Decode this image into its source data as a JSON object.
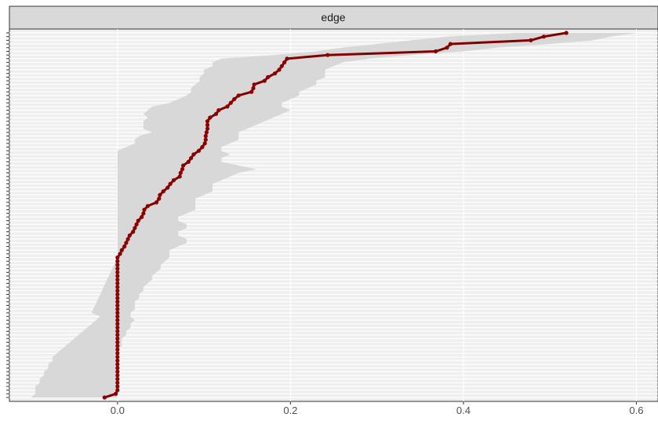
{
  "chart_data": {
    "type": "line",
    "facet_label": "edge",
    "xlim": [
      -0.125,
      0.625
    ],
    "x_ticks": [
      0.0,
      0.2,
      0.4,
      0.6
    ],
    "x_tick_labels": [
      "0.0",
      "0.2",
      "0.4",
      "0.6"
    ],
    "y_count": 100,
    "grid": true,
    "colors": {
      "line": "#800000",
      "point": "#8b0000",
      "ribbon": "#d6d6d6",
      "panel": "#efefef",
      "strip": "#d9d9d9",
      "grid": "#ffffff"
    },
    "series": [
      {
        "values": [
          0.519,
          0.493,
          0.478,
          0.385,
          0.381,
          0.368,
          0.243,
          0.196,
          0.193,
          0.19,
          0.187,
          0.182,
          0.174,
          0.17,
          0.158,
          0.157,
          0.155,
          0.14,
          0.135,
          0.131,
          0.127,
          0.117,
          0.114,
          0.107,
          0.104,
          0.104,
          0.104,
          0.103,
          0.102,
          0.102,
          0.101,
          0.098,
          0.094,
          0.088,
          0.085,
          0.082,
          0.076,
          0.075,
          0.073,
          0.072,
          0.065,
          0.061,
          0.058,
          0.053,
          0.049,
          0.048,
          0.045,
          0.035,
          0.031,
          0.03,
          0.028,
          0.024,
          0.022,
          0.02,
          0.018,
          0.014,
          0.012,
          0.01,
          0.008,
          0.005,
          0.003,
          0.0,
          0.0,
          0.0,
          0.0,
          0.0,
          0.0,
          0.0,
          0.0,
          0.0,
          0.0,
          0.0,
          0.0,
          0.0,
          0.0,
          0.0,
          0.0,
          0.0,
          0.0,
          0.0,
          0.0,
          0.0,
          0.0,
          0.0,
          0.0,
          0.0,
          0.0,
          0.0,
          0.0,
          0.0,
          0.0,
          0.0,
          0.0,
          0.0,
          0.0,
          0.0,
          0.0,
          0.0,
          -0.002,
          -0.015
        ],
        "lower": [
          0.46,
          0.38,
          0.34,
          0.3,
          0.26,
          0.23,
          0.18,
          0.12,
          0.11,
          0.11,
          0.1,
          0.1,
          0.095,
          0.095,
          0.09,
          0.085,
          0.085,
          0.08,
          0.07,
          0.06,
          0.04,
          0.035,
          0.03,
          0.035,
          0.03,
          0.03,
          0.03,
          0.04,
          0.025,
          0.02,
          0.02,
          0.01,
          0.0,
          0.0,
          0.0,
          0.0,
          0.0,
          0.0,
          0.0,
          0.0,
          0.0,
          0.0,
          0.0,
          0.0,
          0.0,
          0.0,
          0.0,
          0.0,
          0.0,
          0.0,
          0.0,
          0.0,
          0.0,
          0.0,
          0.0,
          0.0,
          0.0,
          0.0,
          0.0,
          0.0,
          0.0,
          0.0,
          -0.002,
          -0.004,
          -0.006,
          -0.008,
          -0.01,
          -0.012,
          -0.014,
          -0.016,
          -0.018,
          -0.02,
          -0.022,
          -0.024,
          -0.026,
          -0.028,
          -0.03,
          -0.02,
          -0.025,
          -0.03,
          -0.035,
          -0.04,
          -0.045,
          -0.05,
          -0.055,
          -0.06,
          -0.065,
          -0.07,
          -0.075,
          -0.075,
          -0.08,
          -0.08,
          -0.085,
          -0.085,
          -0.09,
          -0.09,
          -0.095,
          -0.095,
          -0.095,
          -0.1
        ],
        "upper": [
          0.6,
          0.57,
          0.55,
          0.5,
          0.44,
          0.4,
          0.34,
          0.29,
          0.26,
          0.25,
          0.24,
          0.24,
          0.24,
          0.23,
          0.23,
          0.22,
          0.21,
          0.21,
          0.2,
          0.19,
          0.19,
          0.2,
          0.19,
          0.18,
          0.17,
          0.16,
          0.15,
          0.14,
          0.14,
          0.14,
          0.13,
          0.12,
          0.12,
          0.13,
          0.12,
          0.12,
          0.14,
          0.16,
          0.14,
          0.13,
          0.12,
          0.11,
          0.11,
          0.11,
          0.1,
          0.09,
          0.09,
          0.09,
          0.09,
          0.08,
          0.07,
          0.07,
          0.08,
          0.08,
          0.07,
          0.07,
          0.08,
          0.08,
          0.07,
          0.06,
          0.06,
          0.06,
          0.055,
          0.05,
          0.05,
          0.045,
          0.04,
          0.04,
          0.035,
          0.03,
          0.03,
          0.025,
          0.025,
          0.02,
          0.02,
          0.02,
          0.015,
          0.015,
          0.02,
          0.015,
          0.015,
          0.01,
          0.01,
          0.005,
          0.005,
          0.005,
          0.0,
          0.0,
          0.0,
          0.0,
          0.0,
          0.0,
          0.0,
          0.0,
          0.0,
          0.0,
          0.0,
          0.0,
          0.0,
          0.0
        ]
      }
    ]
  }
}
